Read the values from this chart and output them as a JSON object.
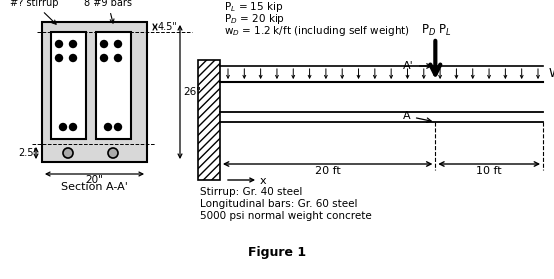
{
  "stirrup_label": "#? stirrup",
  "bars_label": "8 #9 bars",
  "dim_45": "4.5\"",
  "dim_26": "26\"",
  "dim_25": "2.5\"",
  "dim_20inch": "20\"",
  "section_label": "Section A-A'",
  "PL_text": "P$_L$ = 15 kip",
  "PD_text": "P$_D$ = 20 kip",
  "wD_text": "w$_D$ = 1.2 k/ft (including self weight)",
  "dim_20ft": "20 ft",
  "dim_10ft": "10 ft",
  "stirrup_info": "Stirrup: Gr. 40 steel",
  "long_bar_info": "Longitudinal bars: Gr. 60 steel",
  "concrete_info": "5000 psi normal weight concrete",
  "figure_label": "Figure 1",
  "WD_label": "W$_D$",
  "PD_label": "P$_D$",
  "PL_label": "P$_L$",
  "A_label": "A",
  "Aprime_label": "A'",
  "x_label": "x"
}
